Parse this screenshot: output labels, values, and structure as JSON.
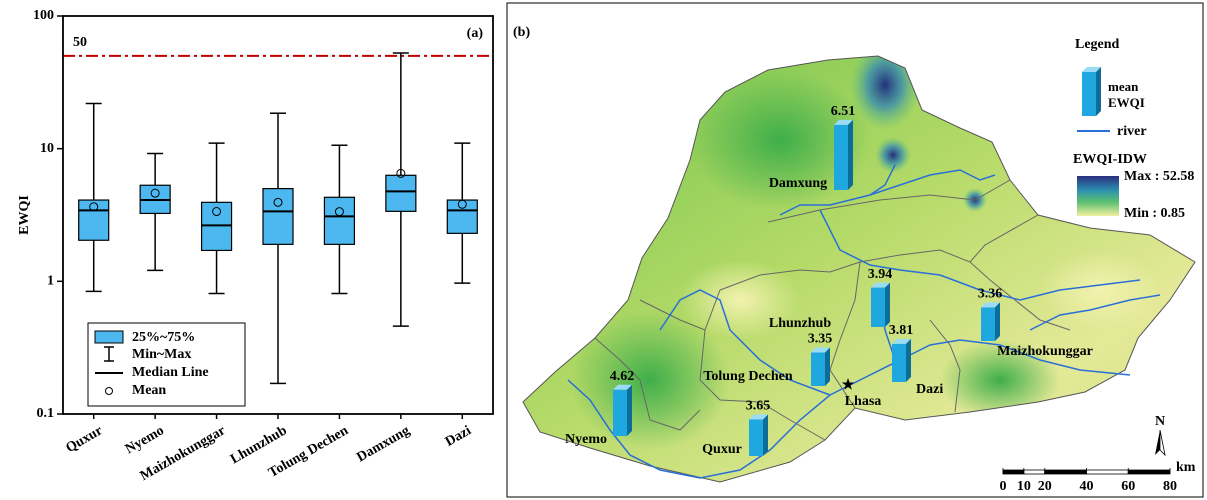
{
  "chart_data": [
    {
      "type": "box",
      "panel_label": "(a)",
      "y_label": "EWQI",
      "categories": [
        "Quxur",
        "Nyemo",
        "Maizhokunggar",
        "Lhunzhub",
        "Tolung Dechen",
        "Damxung",
        "Dazi"
      ],
      "series": [
        {
          "name": "25%~75%",
          "color": "#4db8f0",
          "min": [
            0.84,
            1.21,
            0.81,
            0.17,
            0.81,
            0.46,
            0.97
          ],
          "q1": [
            2.04,
            3.25,
            1.71,
            1.9,
            1.9,
            3.37,
            2.3
          ],
          "median": [
            3.43,
            4.1,
            2.64,
            3.37,
            3.09,
            4.77,
            3.43
          ],
          "q3": [
            4.1,
            5.3,
            3.94,
            5.0,
            4.3,
            6.3,
            4.1
          ],
          "max": [
            21.9,
            9.2,
            11,
            18.5,
            10.6,
            52.58,
            11
          ],
          "mean": [
            3.65,
            4.62,
            3.36,
            3.94,
            3.35,
            6.51,
            3.81
          ]
        }
      ],
      "legend": {
        "whisker": "Min~Max",
        "median": "Median Line",
        "mean": "Mean"
      },
      "ylog": true,
      "ylim": [
        0.1,
        100
      ],
      "yticks": [
        0.1,
        1,
        10,
        100
      ],
      "reference_line": {
        "value": 50,
        "label": "50",
        "color": "#c00000"
      }
    },
    {
      "type": "map",
      "panel_label": "(b)",
      "legend_title": "Legend",
      "bar_legend": "mean EWQI",
      "river_legend": "river",
      "colorbar": {
        "title": "EWQI-IDW",
        "max_label": "Max : 52.58",
        "min_label": "Min : 0.85"
      },
      "categories": [
        "Damxung",
        "Lhunzhub",
        "Maizhokunggar",
        "Dazi",
        "Tolung Dechen",
        "Nyemo",
        "Quxur"
      ],
      "values": [
        6.51,
        3.94,
        3.36,
        3.81,
        3.35,
        4.62,
        3.65
      ],
      "color": "#1fa8e0",
      "city": "Lhasa",
      "north": "N",
      "scale": {
        "ticks": [
          0,
          10,
          20,
          40,
          60,
          80
        ],
        "unit": "km"
      }
    }
  ]
}
